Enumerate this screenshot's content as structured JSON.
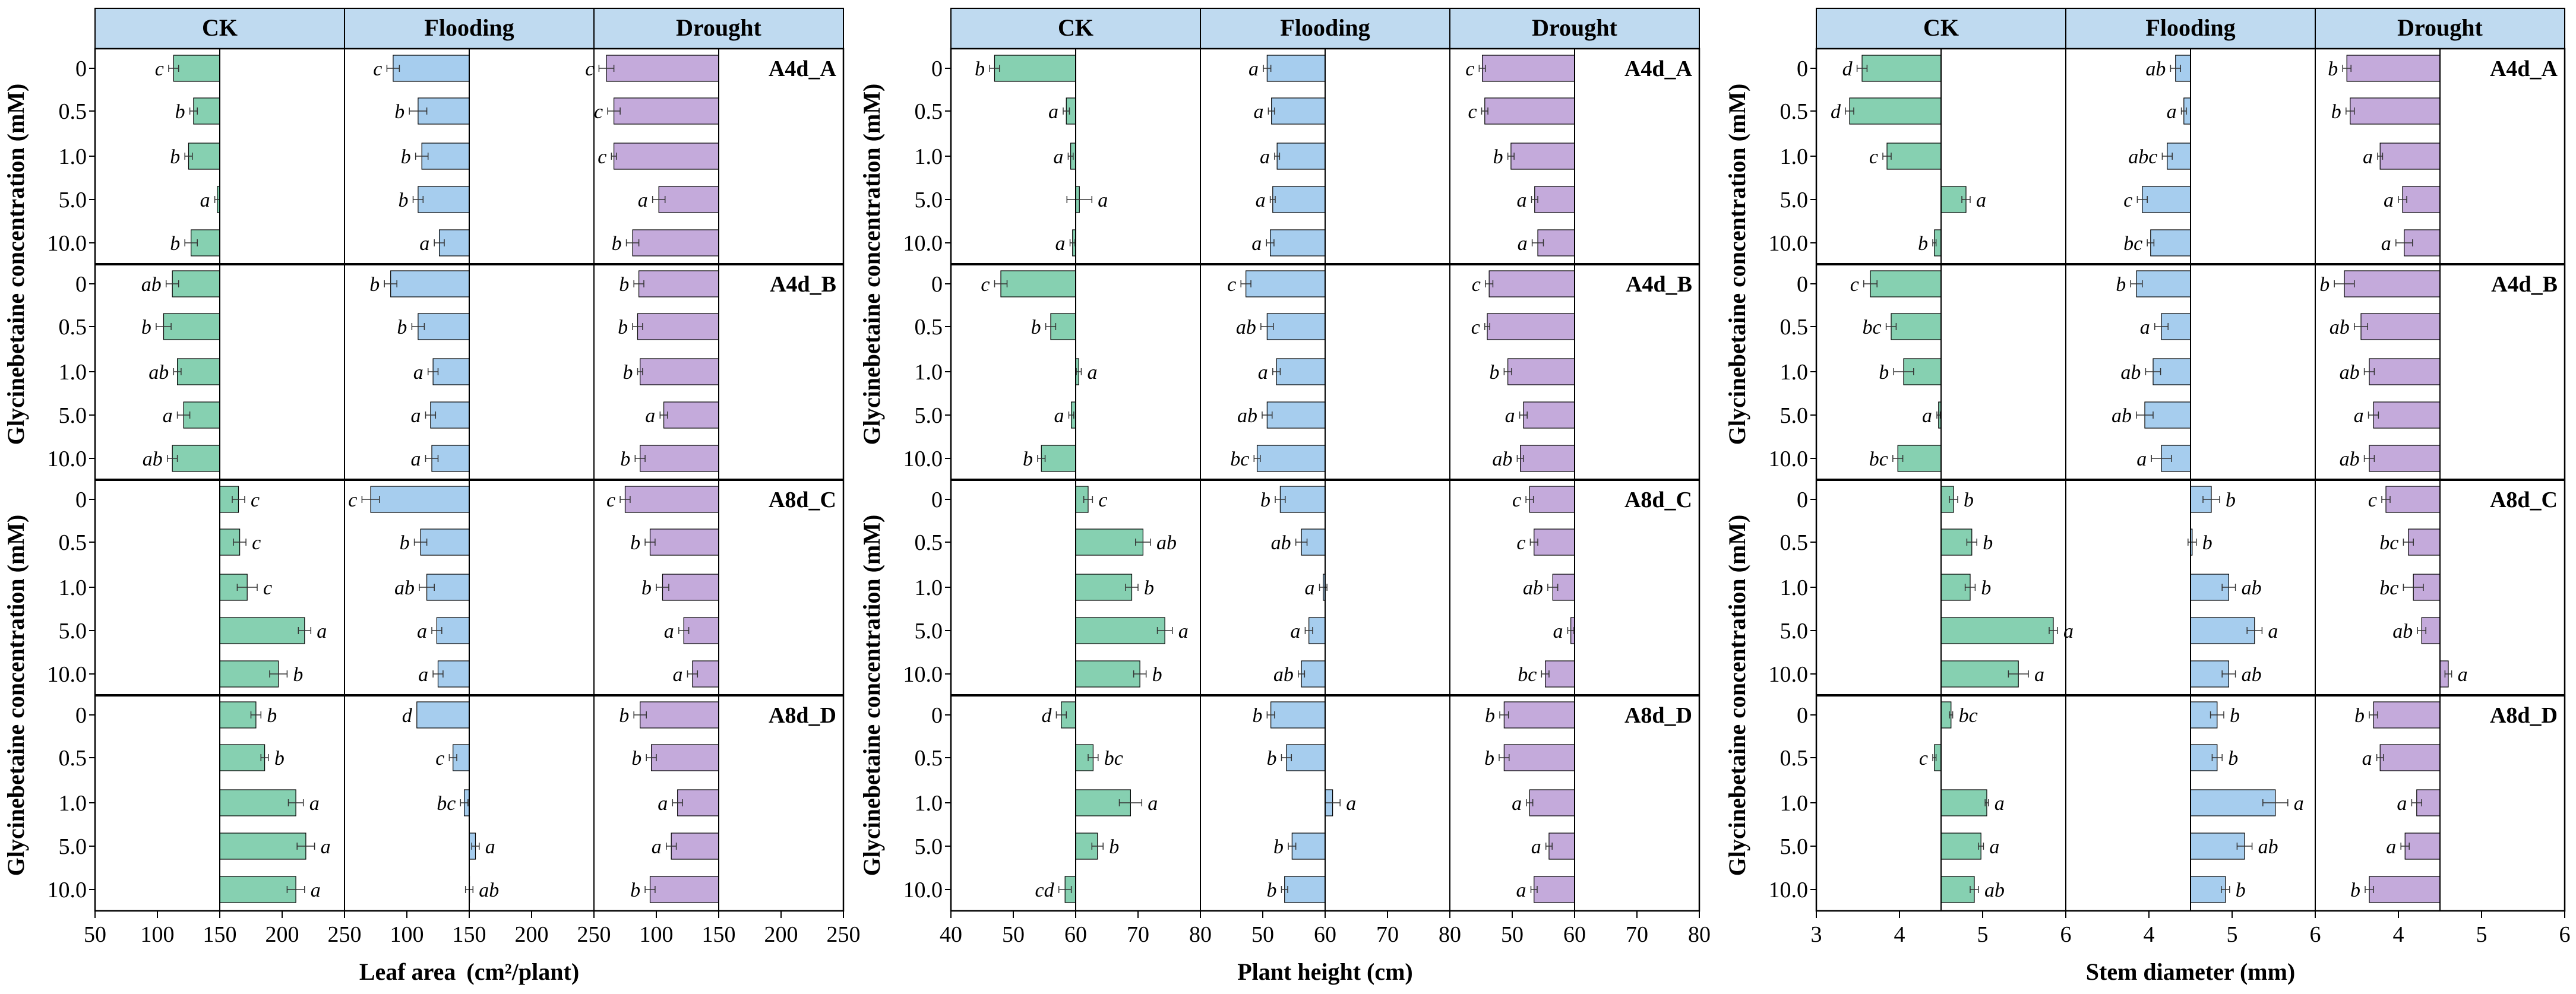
{
  "figure": {
    "ylabel": "Glycinebetaine concentration (mM)",
    "categories": [
      "0",
      "0.5",
      "1.0",
      "5.0",
      "10.0"
    ],
    "columns": [
      "CK",
      "Flooding",
      "Drought"
    ],
    "groups": [
      "A4d_A",
      "A4d_B",
      "A8d_C",
      "A8d_D"
    ],
    "colors": {
      "CK": "#86d0b1",
      "Flooding": "#a6cdee",
      "Drought": "#c4aadb",
      "header": "#bfdaf0",
      "frame": "#000000"
    }
  },
  "chart_data": [
    {
      "type": "bar",
      "orientation": "horizontal",
      "xlabel_main": "Leaf area",
      "xlabel_unit": "(cm²/plant)",
      "ylabel": "Glycinebetaine concentration (mM)",
      "baseline": 150,
      "xlim": [
        50,
        250
      ],
      "xticks": [
        "50",
        "100",
        "150",
        "200",
        "250"
      ],
      "panels": {
        "CK": {
          "A4d_A": {
            "values": [
              113,
              129,
              125,
              148,
              127
            ],
            "errors": [
              4,
              3,
              3,
              2,
              5
            ],
            "letters": [
              "c",
              "b",
              "b",
              "a",
              "b"
            ]
          },
          "A4d_B": {
            "values": [
              112,
              105,
              116,
              121,
              112
            ],
            "errors": [
              5,
              6,
              3,
              5,
              4
            ],
            "letters": [
              "ab",
              "b",
              "ab",
              "a",
              "ab"
            ]
          },
          "A4d_A_dummy": null,
          "A8d_C": {
            "values": [
              165,
              166,
              172,
              218,
              197
            ],
            "errors": [
              5,
              5,
              8,
              5,
              7
            ],
            "letters": [
              "c",
              "c",
              "c",
              "a",
              "b"
            ]
          },
          "A8d_D": {
            "values": [
              179,
              186,
              211,
              219,
              211
            ],
            "errors": [
              4,
              3,
              6,
              7,
              7
            ],
            "letters": [
              "b",
              "b",
              "a",
              "a",
              "a"
            ]
          }
        },
        "Flooding": {
          "A4d_A": {
            "values": [
              89,
              109,
              112,
              109,
              126
            ],
            "errors": [
              5,
              7,
              5,
              4,
              4
            ],
            "letters": [
              "c",
              "b",
              "b",
              "b",
              "a"
            ]
          },
          "A4d_B": {
            "values": [
              87,
              109,
              121,
              119,
              120
            ],
            "errors": [
              5,
              5,
              4,
              4,
              5
            ],
            "letters": [
              "b",
              "b",
              "a",
              "a",
              "a"
            ]
          },
          "A8d_C": {
            "values": [
              71,
              111,
              116,
              124,
              125
            ],
            "errors": [
              7,
              5,
              6,
              4,
              4
            ],
            "letters": [
              "c",
              "b",
              "ab",
              "a",
              "a"
            ]
          },
          "A8d_D": {
            "values": [
              108,
              137,
              146,
              155,
              150
            ],
            "errors": [
              0,
              3,
              3,
              3,
              3
            ],
            "letters": [
              "d",
              "c",
              "bc",
              "a",
              "ab"
            ]
          }
        },
        "Drought": {
          "A4d_A": {
            "values": [
              60,
              66,
              66,
              102,
              81
            ],
            "errors": [
              6,
              5,
              2,
              5,
              5
            ],
            "letters": [
              "c",
              "c",
              "c",
              "a",
              "b"
            ]
          },
          "A4d_B": {
            "values": [
              86,
              85,
              87,
              106,
              87
            ],
            "errors": [
              4,
              4,
              2,
              3,
              4
            ],
            "letters": [
              "b",
              "b",
              "b",
              "a",
              "b"
            ]
          },
          "A8d_C": {
            "values": [
              75,
              95,
              105,
              122,
              129
            ],
            "errors": [
              4,
              4,
              5,
              4,
              4
            ],
            "letters": [
              "c",
              "b",
              "b",
              "a",
              "a"
            ]
          },
          "A8d_D": {
            "values": [
              87,
              96,
              117,
              112,
              95
            ],
            "errors": [
              5,
              4,
              4,
              4,
              4
            ],
            "letters": [
              "b",
              "b",
              "a",
              "a",
              "b"
            ]
          }
        }
      }
    },
    {
      "type": "bar",
      "orientation": "horizontal",
      "xlabel_main": "Plant height (cm)",
      "xlabel_unit": "",
      "ylabel": "Glycinebetaine concentration (mM)",
      "baseline": 60,
      "xlim": [
        40,
        80
      ],
      "xticks": [
        "40",
        "50",
        "60",
        "70",
        "80"
      ],
      "panels": {
        "CK": {
          "A4d_A": {
            "values": [
              47,
              58.5,
              59.2,
              60.6,
              59.5
            ],
            "errors": [
              0.8,
              0.5,
              0.4,
              2,
              0.4
            ],
            "letters": [
              "b",
              "a",
              "a",
              "a",
              "a"
            ]
          },
          "A4d_B": {
            "values": [
              48,
              56,
              60.5,
              59.3,
              54.5
            ],
            "errors": [
              1,
              0.8,
              0.4,
              0.4,
              0.6
            ],
            "letters": [
              "c",
              "b",
              "a",
              "a",
              "b"
            ]
          },
          "A8d_C": {
            "values": [
              62,
              70.8,
              69,
              74.3,
              70.3
            ],
            "errors": [
              0.7,
              1.2,
              1,
              1.2,
              1
            ],
            "letters": [
              "c",
              "ab",
              "b",
              "a",
              "b"
            ]
          },
          "A8d_D": {
            "values": [
              57.7,
              62.8,
              68.8,
              63.5,
              58.3
            ],
            "errors": [
              0.8,
              0.8,
              1.8,
              0.9,
              1
            ],
            "letters": [
              "d",
              "bc",
              "a",
              "b",
              "cd"
            ]
          }
        },
        "Flooding": {
          "A4d_A": {
            "values": [
              50.7,
              51.4,
              52.3,
              51.6,
              51.2
            ],
            "errors": [
              0.6,
              0.5,
              0.4,
              0.4,
              0.6
            ],
            "letters": [
              "a",
              "a",
              "a",
              "a",
              "a"
            ]
          },
          "A4d_B": {
            "values": [
              47.3,
              50.7,
              52.2,
              50.7,
              49.1
            ],
            "errors": [
              0.8,
              1,
              0.6,
              0.8,
              0.5
            ],
            "letters": [
              "c",
              "ab",
              "a",
              "ab",
              "bc"
            ]
          },
          "A8d_C": {
            "values": [
              52.8,
              56.2,
              59.7,
              57.4,
              56.2
            ],
            "errors": [
              0.8,
              0.9,
              0.6,
              0.6,
              0.5
            ],
            "letters": [
              "b",
              "ab",
              "a",
              "a",
              "ab"
            ]
          },
          "A8d_D": {
            "values": [
              51.3,
              53.8,
              61.2,
              54.7,
              53.5
            ],
            "errors": [
              0.6,
              0.8,
              1.2,
              0.6,
              0.5
            ],
            "letters": [
              "b",
              "b",
              "a",
              "b",
              "b"
            ]
          }
        },
        "Drought": {
          "A4d_A": {
            "values": [
              45.2,
              45.6,
              49.8,
              53.6,
              54.1
            ],
            "errors": [
              0.5,
              0.5,
              0.5,
              0.5,
              0.9
            ],
            "letters": [
              "c",
              "c",
              "b",
              "a",
              "a"
            ]
          },
          "A4d_B": {
            "values": [
              46.3,
              46,
              49.3,
              51.8,
              51.3
            ],
            "errors": [
              0.6,
              0.4,
              0.6,
              0.6,
              0.5
            ],
            "letters": [
              "c",
              "c",
              "b",
              "a",
              "ab"
            ]
          },
          "A8d_C": {
            "values": [
              52.8,
              53.5,
              56.5,
              59.4,
              55.3
            ],
            "errors": [
              0.6,
              0.6,
              0.8,
              0.5,
              0.6
            ],
            "letters": [
              "c",
              "c",
              "ab",
              "a",
              "bc"
            ]
          },
          "A8d_D": {
            "values": [
              48.7,
              48.7,
              52.8,
              55.9,
              53.5
            ],
            "errors": [
              0.7,
              0.8,
              0.5,
              0.5,
              0.5
            ],
            "letters": [
              "b",
              "b",
              "a",
              "a",
              "a"
            ]
          }
        }
      }
    },
    {
      "type": "bar",
      "orientation": "horizontal",
      "xlabel_main": "Stem diameter (mm)",
      "xlabel_unit": "",
      "ylabel": "Glycinebetaine concentration (mM)",
      "baseline": 4.5,
      "xlim": [
        3,
        6
      ],
      "xticks": [
        "3",
        "4",
        "5",
        "6"
      ],
      "panels": {
        "CK": {
          "A4d_A": {
            "values": [
              3.55,
              3.4,
              3.85,
              4.8,
              4.42
            ],
            "errors": [
              0.06,
              0.05,
              0.05,
              0.05,
              0.02
            ],
            "letters": [
              "d",
              "d",
              "c",
              "a",
              "b"
            ]
          },
          "A4d_B": {
            "values": [
              3.65,
              3.9,
              4.05,
              4.47,
              3.98
            ],
            "errors": [
              0.08,
              0.06,
              0.12,
              0.02,
              0.06
            ],
            "letters": [
              "c",
              "bc",
              "b",
              "a",
              "bc"
            ]
          },
          "A8d_C": {
            "values": [
              4.65,
              4.87,
              4.85,
              5.85,
              5.43
            ],
            "errors": [
              0.05,
              0.06,
              0.06,
              0.05,
              0.12
            ],
            "letters": [
              "b",
              "b",
              "b",
              "a",
              "a"
            ]
          },
          "A8d_D": {
            "values": [
              4.62,
              4.42,
              5.05,
              4.98,
              4.9
            ],
            "errors": [
              0.02,
              0.02,
              0.02,
              0.03,
              0.05
            ],
            "letters": [
              "bc",
              "c",
              "a",
              "a",
              "ab"
            ]
          }
        },
        "Flooding": {
          "A4d_A": {
            "values": [
              4.32,
              4.42,
              4.22,
              3.92,
              4.02
            ],
            "errors": [
              0.06,
              0.03,
              0.06,
              0.06,
              0.04
            ],
            "letters": [
              "ab",
              "a",
              "abc",
              "c",
              "bc"
            ]
          },
          "A4d_B": {
            "values": [
              3.85,
              4.15,
              4.05,
              3.95,
              4.15
            ],
            "errors": [
              0.07,
              0.08,
              0.09,
              0.1,
              0.12
            ],
            "letters": [
              "b",
              "a",
              "ab",
              "ab",
              "a"
            ]
          },
          "A8d_C": {
            "values": [
              4.75,
              4.52,
              4.96,
              5.27,
              4.96
            ],
            "errors": [
              0.1,
              0.05,
              0.08,
              0.09,
              0.08
            ],
            "letters": [
              "b",
              "b",
              "ab",
              "a",
              "ab"
            ]
          },
          "A8d_D": {
            "values": [
              4.82,
              4.82,
              5.52,
              5.15,
              4.92
            ],
            "errors": [
              0.08,
              0.06,
              0.15,
              0.09,
              0.05
            ],
            "letters": [
              "b",
              "b",
              "a",
              "ab",
              "b"
            ]
          }
        },
        "Drought": {
          "A4d_A": {
            "values": [
              3.38,
              3.42,
              3.78,
              4.05,
              4.07
            ],
            "errors": [
              0.05,
              0.05,
              0.03,
              0.05,
              0.1
            ],
            "letters": [
              "b",
              "b",
              "a",
              "a",
              "a"
            ]
          },
          "A4d_B": {
            "values": [
              3.35,
              3.55,
              3.65,
              3.7,
              3.65
            ],
            "errors": [
              0.12,
              0.08,
              0.06,
              0.06,
              0.06
            ],
            "letters": [
              "b",
              "ab",
              "ab",
              "a",
              "ab"
            ]
          },
          "A8d_C": {
            "values": [
              3.85,
              4.12,
              4.18,
              4.28,
              4.6
            ],
            "errors": [
              0.05,
              0.06,
              0.12,
              0.05,
              0.04
            ],
            "letters": [
              "c",
              "bc",
              "bc",
              "ab",
              "a"
            ]
          },
          "A8d_D": {
            "values": [
              3.7,
              3.78,
              4.22,
              4.08,
              3.65
            ],
            "errors": [
              0.05,
              0.04,
              0.06,
              0.05,
              0.05
            ],
            "letters": [
              "b",
              "a",
              "a",
              "a",
              "b"
            ]
          }
        }
      }
    }
  ]
}
